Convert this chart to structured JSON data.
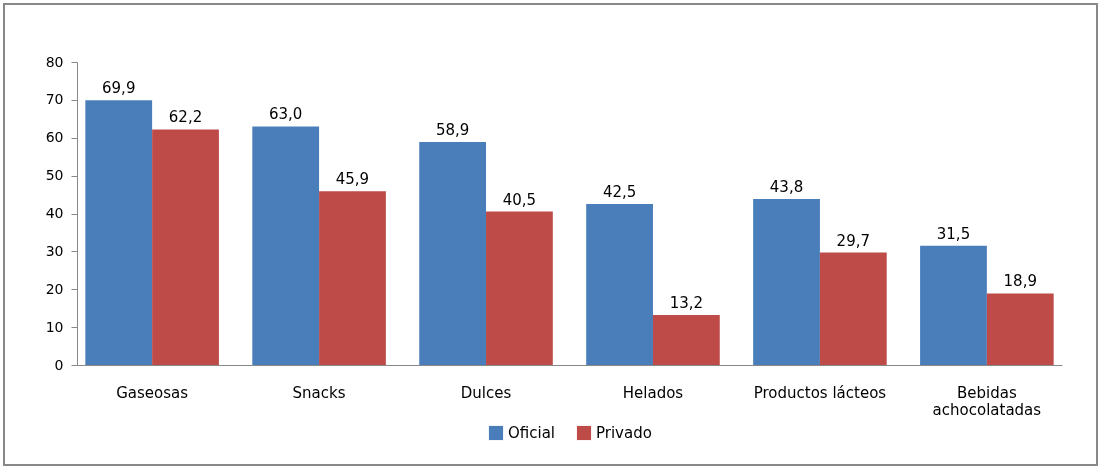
{
  "chart_data": {
    "type": "bar",
    "categories": [
      "Gaseosas",
      "Snacks",
      "Dulces",
      "Helados",
      "Productos lácteos",
      "Bebidas achocolatadas"
    ],
    "series": [
      {
        "name": "Oficial",
        "color": "#4a7ebb",
        "values": [
          69.9,
          63.0,
          58.9,
          42.5,
          43.8,
          31.5
        ],
        "value_labels": [
          "69,9",
          "63,0",
          "58,9",
          "42,5",
          "43,8",
          "31,5"
        ]
      },
      {
        "name": "Privado",
        "color": "#be4b48",
        "values": [
          62.2,
          45.9,
          40.5,
          13.2,
          29.7,
          18.9
        ],
        "value_labels": [
          "62,2",
          "45,9",
          "40,5",
          "13,2",
          "29,7",
          "18,9"
        ]
      }
    ],
    "ylim": [
      0,
      80
    ],
    "yticks": [
      0,
      10,
      20,
      30,
      40,
      50,
      60,
      70,
      80
    ],
    "grid": false,
    "legend": "bottom"
  }
}
